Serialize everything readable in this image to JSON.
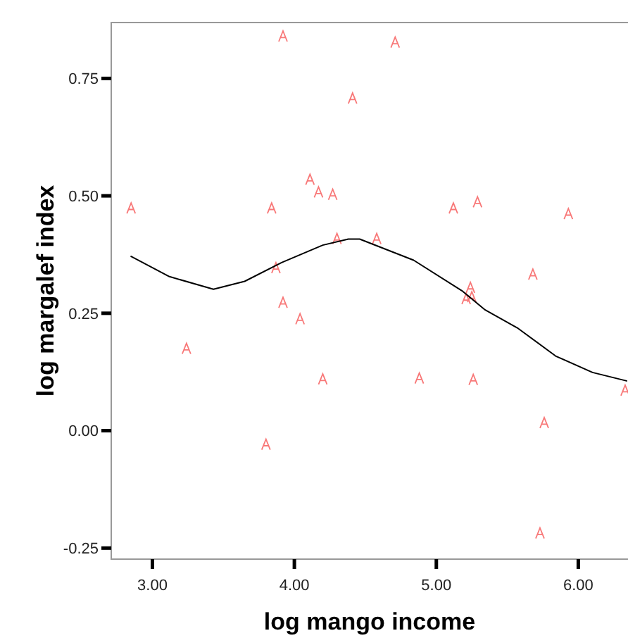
{
  "chart_data": {
    "type": "scatter",
    "xlabel": "log mango income",
    "ylabel": "log margalef index",
    "xlim": [
      2.71,
      6.36
    ],
    "ylim": [
      -0.272,
      0.869
    ],
    "xticks": [
      {
        "value": 3,
        "label": "3.00"
      },
      {
        "value": 4,
        "label": "4.00"
      },
      {
        "value": 5,
        "label": "5.00"
      },
      {
        "value": 6,
        "label": "6.00"
      }
    ],
    "yticks": [
      {
        "value": -0.25,
        "label": "-0.25"
      },
      {
        "value": 0,
        "label": "0.00"
      },
      {
        "value": 0.25,
        "label": "0.25"
      },
      {
        "value": 0.5,
        "label": "0.50"
      },
      {
        "value": 0.75,
        "label": "0.75"
      }
    ],
    "grid": false,
    "series": [
      {
        "marker": "cross",
        "color": "#f87878",
        "x": [
          2.85,
          3.92,
          4.71,
          4.41,
          4.11,
          4.17,
          4.27,
          3.84,
          5.12,
          5.29,
          5.93,
          4.3,
          4.58,
          3.87,
          5.68,
          5.24,
          5.21,
          5.25,
          3.92,
          4.04,
          3.24,
          4.2,
          4.88,
          5.26,
          6.33,
          5.76,
          3.8,
          5.73
        ],
        "values": [
          0.473,
          0.839,
          0.826,
          0.707,
          0.534,
          0.507,
          0.502,
          0.473,
          0.473,
          0.486,
          0.461,
          0.408,
          0.408,
          0.346,
          0.332,
          0.304,
          0.28,
          0.284,
          0.272,
          0.237,
          0.174,
          0.109,
          0.111,
          0.108,
          0.085,
          0.016,
          -0.03,
          -0.219
        ]
      },
      {
        "type": "line",
        "marker": "none",
        "color": "#000000",
        "line_style": "solid",
        "x": [
          2.85,
          3.12,
          3.43,
          3.65,
          3.91,
          4.2,
          4.38,
          4.46,
          4.84,
          5.18,
          5.34,
          5.57,
          5.84,
          6.1,
          6.34
        ],
        "values": [
          0.371,
          0.328,
          0.301,
          0.318,
          0.358,
          0.395,
          0.408,
          0.408,
          0.363,
          0.298,
          0.258,
          0.219,
          0.159,
          0.124,
          0.106
        ]
      }
    ]
  }
}
